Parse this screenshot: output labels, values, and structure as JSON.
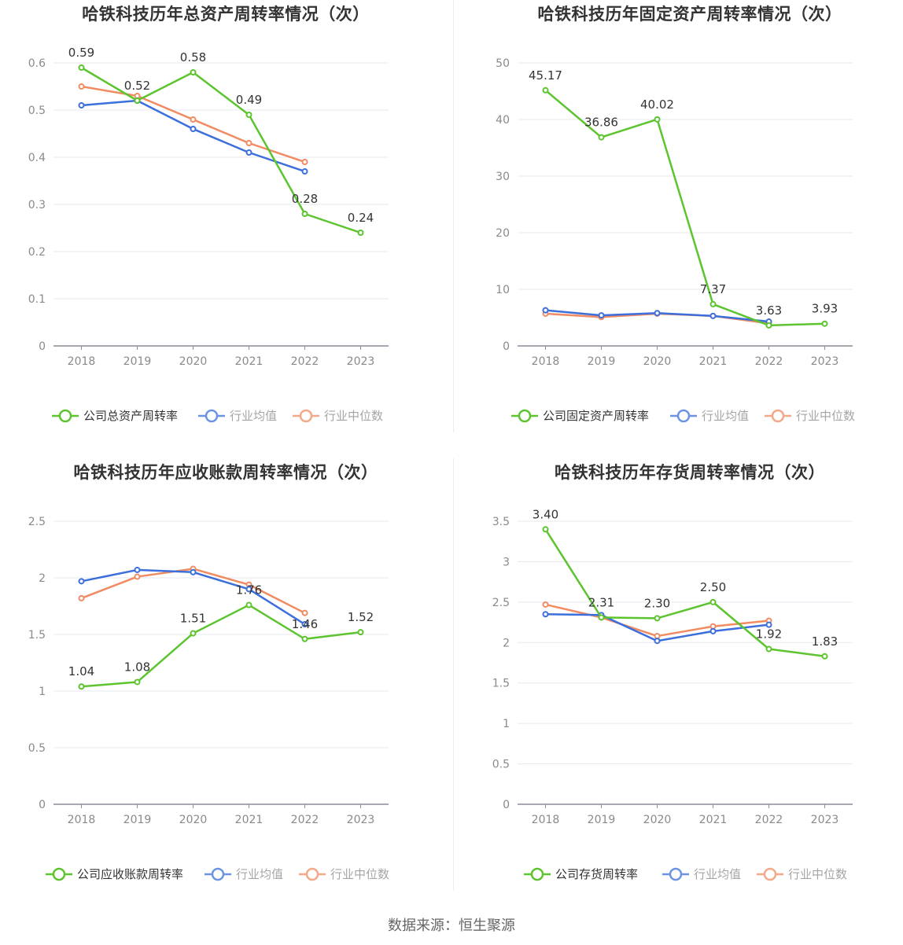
{
  "source_label": "数据来源：恒生聚源",
  "colors": {
    "company": "#5cc42e",
    "mean": "#3c6fdb",
    "median": "#f08b62"
  },
  "chart_data": [
    {
      "type": "line",
      "title": "哈铁科技历年总资产周转率情况（次）",
      "x": [
        "2018",
        "2019",
        "2020",
        "2021",
        "2022",
        "2023"
      ],
      "ylim": [
        0,
        0.6
      ],
      "yticks": [
        "0",
        "0.1",
        "0.2",
        "0.3",
        "0.4",
        "0.5",
        "0.6"
      ],
      "yticks_values": [
        0,
        0.1,
        0.2,
        0.3,
        0.4,
        0.5,
        0.6
      ],
      "grid": true,
      "legend": "bottom",
      "series": [
        {
          "name": "公司总资产周转率",
          "values": [
            0.59,
            0.52,
            0.58,
            0.49,
            0.28,
            0.24
          ],
          "labels": [
            "0.59",
            "0.52",
            "0.58",
            "0.49",
            "0.28",
            "0.24"
          ]
        },
        {
          "name": "行业均值",
          "values": [
            0.51,
            0.52,
            0.46,
            0.41,
            0.37,
            null
          ]
        },
        {
          "name": "行业中位数",
          "values": [
            0.55,
            0.53,
            0.48,
            0.43,
            0.39,
            null
          ]
        }
      ]
    },
    {
      "type": "line",
      "title": "哈铁科技历年固定资产周转率情况（次）",
      "x": [
        "2018",
        "2019",
        "2020",
        "2021",
        "2022",
        "2023"
      ],
      "ylim": [
        0,
        50
      ],
      "yticks": [
        "0",
        "10",
        "20",
        "30",
        "40",
        "50"
      ],
      "yticks_values": [
        0,
        10,
        20,
        30,
        40,
        50
      ],
      "grid": true,
      "legend": "bottom",
      "series": [
        {
          "name": "公司固定资产周转率",
          "values": [
            45.17,
            36.86,
            40.02,
            7.37,
            3.63,
            3.93
          ],
          "labels": [
            "45.17",
            "36.86",
            "40.02",
            "7.37",
            "3.63",
            "3.93"
          ]
        },
        {
          "name": "行业均值",
          "values": [
            6.3,
            5.4,
            5.8,
            5.3,
            4.3,
            null
          ]
        },
        {
          "name": "行业中位数",
          "values": [
            5.7,
            5.1,
            5.7,
            5.3,
            4.0,
            null
          ]
        }
      ]
    },
    {
      "type": "line",
      "title": "哈铁科技历年应收账款周转率情况（次）",
      "x": [
        "2018",
        "2019",
        "2020",
        "2021",
        "2022",
        "2023"
      ],
      "ylim": [
        0,
        2.5
      ],
      "yticks": [
        "0",
        "0.5",
        "1",
        "1.5",
        "2",
        "2.5"
      ],
      "yticks_values": [
        0,
        0.5,
        1,
        1.5,
        2,
        2.5
      ],
      "grid": true,
      "legend": "bottom",
      "series": [
        {
          "name": "公司应收账款周转率",
          "values": [
            1.04,
            1.08,
            1.51,
            1.76,
            1.46,
            1.52
          ],
          "labels": [
            "1.04",
            "1.08",
            "1.51",
            "1.76",
            "1.46",
            "1.52"
          ]
        },
        {
          "name": "行业均值",
          "values": [
            1.97,
            2.07,
            2.05,
            1.9,
            1.59,
            null
          ]
        },
        {
          "name": "行业中位数",
          "values": [
            1.82,
            2.01,
            2.08,
            1.94,
            1.69,
            null
          ]
        }
      ]
    },
    {
      "type": "line",
      "title": "哈铁科技历年存货周转率情况（次）",
      "x": [
        "2018",
        "2019",
        "2020",
        "2021",
        "2022",
        "2023"
      ],
      "ylim": [
        0,
        3.5
      ],
      "yticks": [
        "0",
        "0.5",
        "1",
        "1.5",
        "2",
        "2.5",
        "3",
        "3.5"
      ],
      "yticks_values": [
        0,
        0.5,
        1,
        1.5,
        2,
        2.5,
        3,
        3.5
      ],
      "grid": true,
      "legend": "bottom",
      "series": [
        {
          "name": "公司存货周转率",
          "values": [
            3.4,
            2.31,
            2.3,
            2.5,
            1.92,
            1.83
          ],
          "labels": [
            "3.40",
            "2.31",
            "2.30",
            "2.50",
            "1.92",
            "1.83"
          ]
        },
        {
          "name": "行业均值",
          "values": [
            2.35,
            2.34,
            2.02,
            2.14,
            2.22,
            null
          ]
        },
        {
          "name": "行业中位数",
          "values": [
            2.47,
            2.31,
            2.08,
            2.2,
            2.27,
            null
          ]
        }
      ]
    }
  ]
}
